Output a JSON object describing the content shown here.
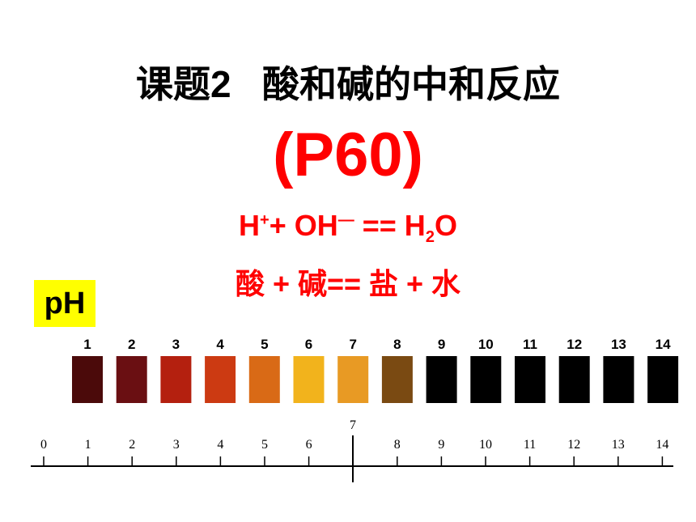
{
  "title": "课题2   酸和碱的中和反应",
  "page_ref": "(P60)",
  "equation_ionic": {
    "h": "H",
    "h_charge": "+",
    "plus_oh": "+ OH",
    "oh_charge": "—",
    "eq_h": " == H",
    "sub2": "2",
    "o": "O"
  },
  "equation_words": "酸 + 碱== 盐 + 水",
  "ph_label": "pH",
  "color_chart": {
    "labels": [
      "1",
      "2",
      "3",
      "4",
      "5",
      "6",
      "7",
      "8",
      "9",
      "10",
      "11",
      "12",
      "13",
      "14"
    ],
    "colors": [
      "#4b0a0a",
      "#6a0f12",
      "#b4200f",
      "#cc3a12",
      "#d96a16",
      "#f2b31c",
      "#e89a24",
      "#7a4a12",
      "#000000",
      "#000000",
      "#000000",
      "#000000",
      "#000000",
      "#000000"
    ]
  },
  "scale": {
    "labels": [
      "0",
      "1",
      "2",
      "3",
      "4",
      "5",
      "6",
      "7",
      "8",
      "9",
      "10",
      "11",
      "12",
      "13",
      "14"
    ]
  }
}
